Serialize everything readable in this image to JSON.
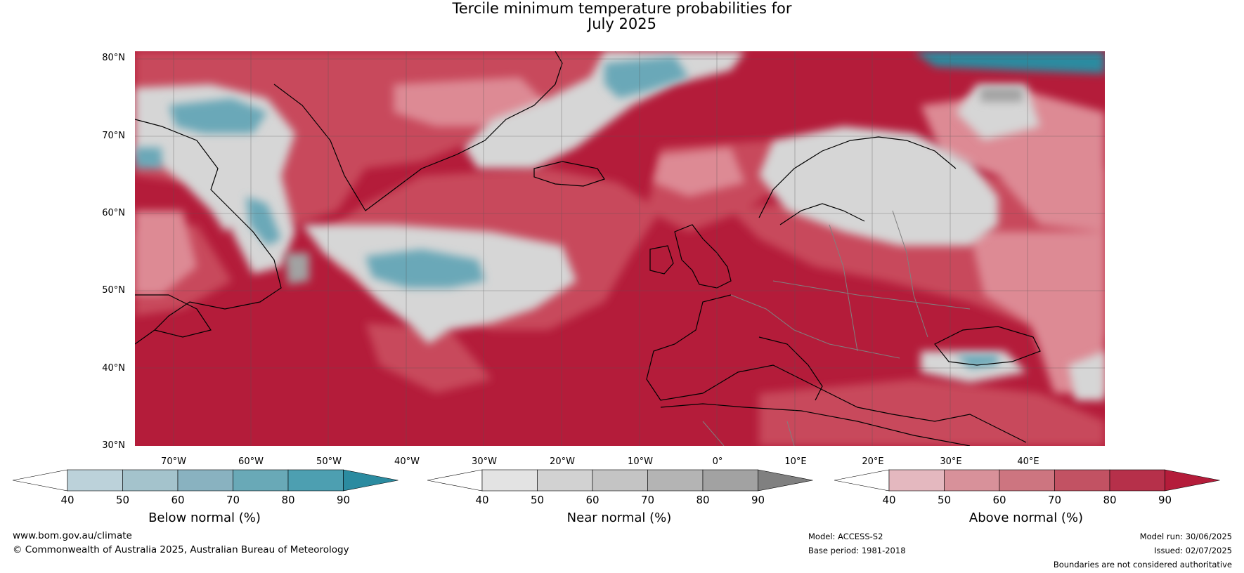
{
  "title": {
    "line1": "Tercile minimum temperature probabilities for",
    "line2": "July 2025"
  },
  "map": {
    "lat_labels": [
      "80°N",
      "70°N",
      "60°N",
      "50°N",
      "40°N",
      "30°N"
    ],
    "lon_labels": [
      "70°W",
      "60°W",
      "50°W",
      "40°W",
      "30°W",
      "20°W",
      "10°W",
      "0°",
      "10°E",
      "20°E",
      "30°E",
      "40°E"
    ],
    "extent": {
      "lon": [
        -77.5,
        47.5
      ],
      "lat": [
        30,
        80
      ]
    },
    "colors": {
      "above_dominant": "#b41c3a",
      "above_mid": "#c84a5c",
      "above_light": "#dd8a94",
      "near": "#d6d6d6",
      "below": "#6aa8b8",
      "coastline": "#000000",
      "border": "#808080"
    }
  },
  "colorbars": [
    {
      "name": "Below normal (%)",
      "ticks": [
        "40",
        "50",
        "60",
        "70",
        "80",
        "90"
      ],
      "colors": [
        "#ffffff",
        "#bcd2da",
        "#a4c3cc",
        "#89b2c0",
        "#69a9b7",
        "#4d9fb1",
        "#2b8ba0"
      ]
    },
    {
      "name": "Near normal (%)",
      "ticks": [
        "40",
        "50",
        "60",
        "70",
        "80",
        "90"
      ],
      "colors": [
        "#ffffff",
        "#e3e3e3",
        "#d2d2d2",
        "#c4c4c4",
        "#b4b4b4",
        "#a2a2a2",
        "#808080"
      ]
    },
    {
      "name": "Above normal (%)",
      "ticks": [
        "40",
        "50",
        "60",
        "70",
        "80",
        "90"
      ],
      "colors": [
        "#ffffff",
        "#e4b8bf",
        "#d8919a",
        "#cd7580",
        "#c25263",
        "#b6304a",
        "#b41c3a"
      ]
    }
  ],
  "footer": {
    "website": "www.bom.gov.au/climate",
    "copyright": "© Commonwealth of Australia 2025, Australian Bureau of Meteorology",
    "model": "Model: ACCESS-S2",
    "base_period": "Base period: 1981-2018",
    "model_run": "Model run: 30/06/2025",
    "issued": "Issued: 02/07/2025",
    "disclaimer": "Boundaries are not considered authoritative"
  }
}
